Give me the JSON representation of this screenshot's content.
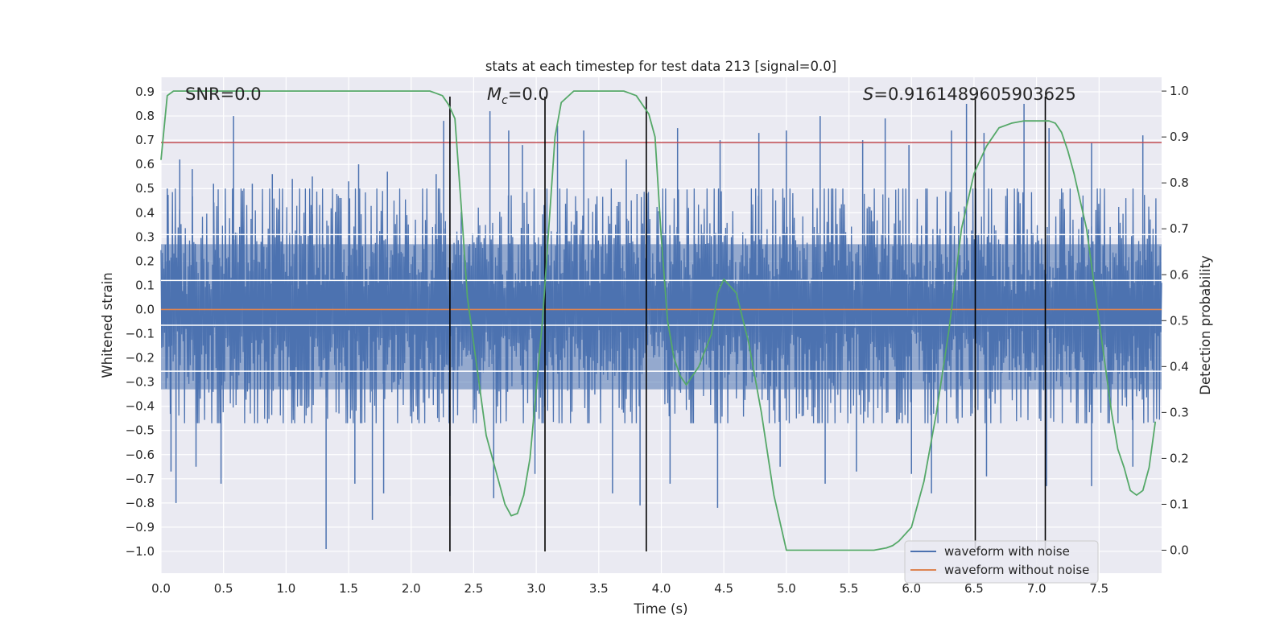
{
  "chart_data": {
    "type": "line",
    "title": "stats at each timestep for test data 213 [signal=0.0]",
    "xlabel": "Time (s)",
    "ylabel_left": "Whitened strain",
    "ylabel_right": "Detection probability",
    "xlim": [
      0.0,
      8.0
    ],
    "ylim_left": [
      -1.09,
      0.96
    ],
    "ylim_right": [
      -0.05,
      1.03
    ],
    "x_ticks": [
      0.0,
      0.5,
      1.0,
      1.5,
      2.0,
      2.5,
      3.0,
      3.5,
      4.0,
      4.5,
      5.0,
      5.5,
      6.0,
      6.5,
      7.0,
      7.5
    ],
    "x_tick_labels": [
      "0.0",
      "0.5",
      "1.0",
      "1.5",
      "2.0",
      "2.5",
      "3.0",
      "3.5",
      "4.0",
      "4.5",
      "5.0",
      "5.5",
      "6.0",
      "6.5",
      "7.0",
      "7.5"
    ],
    "y_left_ticks": [
      0.9,
      0.8,
      0.7,
      0.6,
      0.5,
      0.4,
      0.3,
      0.2,
      0.1,
      0.0,
      -0.1,
      -0.2,
      -0.3,
      -0.4,
      -0.5,
      -0.6,
      -0.7,
      -0.8,
      -0.9,
      -1.0
    ],
    "y_left_tick_labels": [
      "0.9",
      "0.8",
      "0.7",
      "0.6",
      "0.5",
      "0.4",
      "0.3",
      "0.2",
      "0.1",
      "0.0",
      "−0.1",
      "−0.2",
      "−0.3",
      "−0.4",
      "−0.5",
      "−0.6",
      "−0.7",
      "−0.8",
      "−0.9",
      "−1.0"
    ],
    "y_right_ticks": [
      1.0,
      0.9,
      0.8,
      0.7,
      0.6,
      0.5,
      0.4,
      0.3,
      0.2,
      0.1,
      0.0
    ],
    "y_right_tick_labels": [
      "1.0",
      "0.9",
      "0.8",
      "0.7",
      "0.6",
      "0.5",
      "0.4",
      "0.3",
      "0.2",
      "0.1",
      "0.0"
    ],
    "annotations": {
      "snr": "SNR=0.0",
      "mc_symbol": "M",
      "mc_sub": "c",
      "mc_value": "=0.0",
      "s_symbol": "S",
      "s_value": "=0.9161489605903625"
    },
    "series": [
      {
        "name": "waveform with noise",
        "color": "#4c72b0",
        "noise_envelope": {
          "typical_low": -0.45,
          "typical_high": 0.45
        },
        "peaks_high": [
          [
            0.05,
            0.5
          ],
          [
            0.15,
            0.62
          ],
          [
            0.25,
            0.58
          ],
          [
            0.42,
            0.52
          ],
          [
            0.58,
            0.8
          ],
          [
            0.73,
            0.52
          ],
          [
            0.89,
            0.56
          ],
          [
            1.05,
            0.54
          ],
          [
            1.21,
            0.55
          ],
          [
            1.5,
            0.53
          ],
          [
            1.58,
            0.6
          ],
          [
            1.81,
            0.57
          ],
          [
            2.2,
            0.56
          ],
          [
            2.26,
            0.78
          ],
          [
            2.63,
            0.82
          ],
          [
            2.78,
            0.74
          ],
          [
            2.89,
            0.68
          ],
          [
            3.17,
            0.76
          ],
          [
            3.38,
            0.74
          ],
          [
            3.72,
            0.62
          ],
          [
            4.13,
            0.75
          ],
          [
            4.47,
            0.7
          ],
          [
            4.78,
            0.73
          ],
          [
            5.0,
            0.74
          ],
          [
            5.27,
            0.8
          ],
          [
            5.61,
            0.7
          ],
          [
            5.79,
            0.79
          ],
          [
            5.98,
            0.68
          ],
          [
            6.32,
            0.74
          ],
          [
            6.44,
            0.85
          ],
          [
            6.58,
            0.73
          ],
          [
            6.9,
            0.85
          ],
          [
            7.1,
            0.75
          ],
          [
            7.44,
            0.69
          ],
          [
            7.85,
            0.72
          ]
        ],
        "peaks_low": [
          [
            0.08,
            -0.67
          ],
          [
            0.12,
            -0.8
          ],
          [
            0.28,
            -0.65
          ],
          [
            0.48,
            -0.72
          ],
          [
            1.32,
            -0.99
          ],
          [
            1.55,
            -0.72
          ],
          [
            1.69,
            -0.87
          ],
          [
            1.78,
            -0.76
          ],
          [
            2.31,
            -0.77
          ],
          [
            2.66,
            -0.78
          ],
          [
            2.99,
            -0.68
          ],
          [
            3.61,
            -0.76
          ],
          [
            3.83,
            -0.81
          ],
          [
            4.07,
            -0.72
          ],
          [
            4.45,
            -0.82
          ],
          [
            4.95,
            -0.65
          ],
          [
            5.31,
            -0.72
          ],
          [
            5.56,
            -0.67
          ],
          [
            6.0,
            -0.68
          ],
          [
            6.16,
            -0.76
          ],
          [
            6.6,
            -0.69
          ],
          [
            7.08,
            -0.73
          ],
          [
            7.44,
            -0.73
          ],
          [
            7.77,
            -0.65
          ]
        ]
      },
      {
        "name": "waveform without noise",
        "color": "#dd8452",
        "x": [
          0.0,
          8.0
        ],
        "y": [
          0.0,
          0.0
        ]
      },
      {
        "name": "detection probability",
        "color": "#55a868",
        "axis": "right",
        "x": [
          0.0,
          0.05,
          0.1,
          0.2,
          0.4,
          1.0,
          1.5,
          2.0,
          2.15,
          2.2,
          2.25,
          2.3,
          2.35,
          2.4,
          2.45,
          2.5,
          2.6,
          2.7,
          2.75,
          2.8,
          2.85,
          2.9,
          2.95,
          3.0,
          3.05,
          3.1,
          3.15,
          3.2,
          3.3,
          3.5,
          3.7,
          3.75,
          3.8,
          3.85,
          3.9,
          3.95,
          4.0,
          4.05,
          4.1,
          4.15,
          4.2,
          4.3,
          4.4,
          4.45,
          4.5,
          4.6,
          4.7,
          4.8,
          4.9,
          5.0,
          5.5,
          5.7,
          5.8,
          5.85,
          5.9,
          6.0,
          6.1,
          6.2,
          6.3,
          6.4,
          6.5,
          6.6,
          6.7,
          6.8,
          6.9,
          7.0,
          7.1,
          7.15,
          7.2,
          7.25,
          7.3,
          7.4,
          7.5,
          7.55,
          7.6,
          7.65,
          7.7,
          7.75,
          7.8,
          7.85,
          7.9,
          7.95
        ],
        "y": [
          0.85,
          0.99,
          1.0,
          1.0,
          1.0,
          1.0,
          1.0,
          1.0,
          1.0,
          0.995,
          0.99,
          0.97,
          0.94,
          0.75,
          0.55,
          0.45,
          0.25,
          0.15,
          0.1,
          0.075,
          0.08,
          0.12,
          0.2,
          0.35,
          0.5,
          0.7,
          0.9,
          0.975,
          1.0,
          1.0,
          1.0,
          0.995,
          0.99,
          0.97,
          0.95,
          0.9,
          0.68,
          0.5,
          0.42,
          0.38,
          0.36,
          0.4,
          0.47,
          0.56,
          0.59,
          0.56,
          0.45,
          0.3,
          0.12,
          0.0,
          0.0,
          0.0,
          0.005,
          0.01,
          0.02,
          0.05,
          0.15,
          0.3,
          0.48,
          0.7,
          0.82,
          0.88,
          0.92,
          0.93,
          0.935,
          0.935,
          0.935,
          0.93,
          0.91,
          0.87,
          0.82,
          0.7,
          0.5,
          0.4,
          0.3,
          0.22,
          0.18,
          0.13,
          0.12,
          0.13,
          0.18,
          0.28
        ]
      }
    ],
    "hlines": [
      {
        "y": 0.69,
        "axis": "left",
        "color": "#c44e52"
      },
      {
        "y": 0.31,
        "axis": "left",
        "color": "#ffffff"
      },
      {
        "y": 0.12,
        "axis": "left",
        "color": "#ffffff"
      },
      {
        "y": -0.065,
        "axis": "left",
        "color": "#ffffff"
      },
      {
        "y": -0.255,
        "axis": "left",
        "color": "#ffffff"
      }
    ],
    "vlines": {
      "x": [
        2.31,
        3.07,
        3.88,
        6.51,
        7.07
      ],
      "ymin": -1.0,
      "ymax": 0.88,
      "color": "#000000"
    },
    "grid": true,
    "legend_location": "lower right",
    "colors": {
      "plot_background": "#eaeaf2",
      "grid": "#ffffff",
      "text": "#262626"
    }
  }
}
